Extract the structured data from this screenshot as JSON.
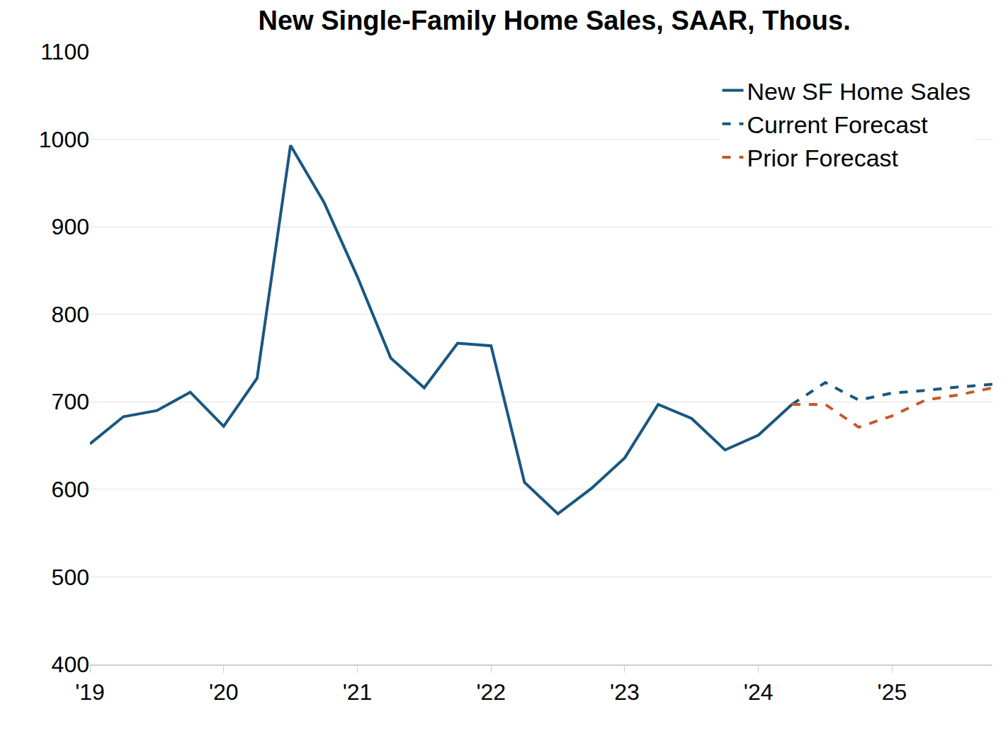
{
  "chart_data": {
    "type": "line",
    "title": "New Single-Family Home Sales, SAAR, Thous.",
    "x": [
      2019,
      2019.25,
      2019.5,
      2019.75,
      2020,
      2020.25,
      2020.5,
      2020.75,
      2021,
      2021.25,
      2021.5,
      2021.75,
      2022,
      2022.25,
      2022.5,
      2022.75,
      2023,
      2023.25,
      2023.5,
      2023.75,
      2024,
      2024.25,
      2024.5,
      2024.75,
      2025,
      2025.25,
      2025.5,
      2025.75
    ],
    "series": [
      {
        "name": "New SF Home Sales",
        "color": "#1a5780",
        "line_style": "solid",
        "values": [
          652,
          683,
          690,
          711,
          672,
          727,
          993,
          928,
          843,
          750,
          716,
          767,
          764,
          608,
          572,
          601,
          636,
          697,
          681,
          645,
          662,
          697,
          null,
          null,
          null,
          null,
          null,
          null
        ]
      },
      {
        "name": "Current Forecast",
        "color": "#1a5780",
        "line_style": "dash",
        "values": [
          null,
          null,
          null,
          null,
          null,
          null,
          null,
          null,
          null,
          null,
          null,
          null,
          null,
          null,
          null,
          null,
          null,
          null,
          null,
          null,
          null,
          697,
          722,
          702,
          710,
          713,
          717,
          720
        ]
      },
      {
        "name": "Prior Forecast",
        "color": "#c45a28",
        "line_style": "dash",
        "values": [
          null,
          null,
          null,
          null,
          null,
          null,
          null,
          null,
          null,
          null,
          null,
          null,
          null,
          null,
          null,
          null,
          null,
          null,
          null,
          null,
          null,
          697,
          697,
          671,
          684,
          702,
          708,
          716
        ]
      }
    ],
    "xlim": [
      2019,
      2025.75
    ],
    "xticks": [
      {
        "value": 2019,
        "label": "'19"
      },
      {
        "value": 2020,
        "label": "'20"
      },
      {
        "value": 2021,
        "label": "'21"
      },
      {
        "value": 2022,
        "label": "'22"
      },
      {
        "value": 2023,
        "label": "'23"
      },
      {
        "value": 2024,
        "label": "'24"
      },
      {
        "value": 2025,
        "label": "'25"
      }
    ],
    "ylim": [
      400,
      1100
    ],
    "yticks": [
      400,
      500,
      600,
      700,
      800,
      900,
      1000,
      1100
    ],
    "grid": true,
    "legend": "upper right"
  }
}
